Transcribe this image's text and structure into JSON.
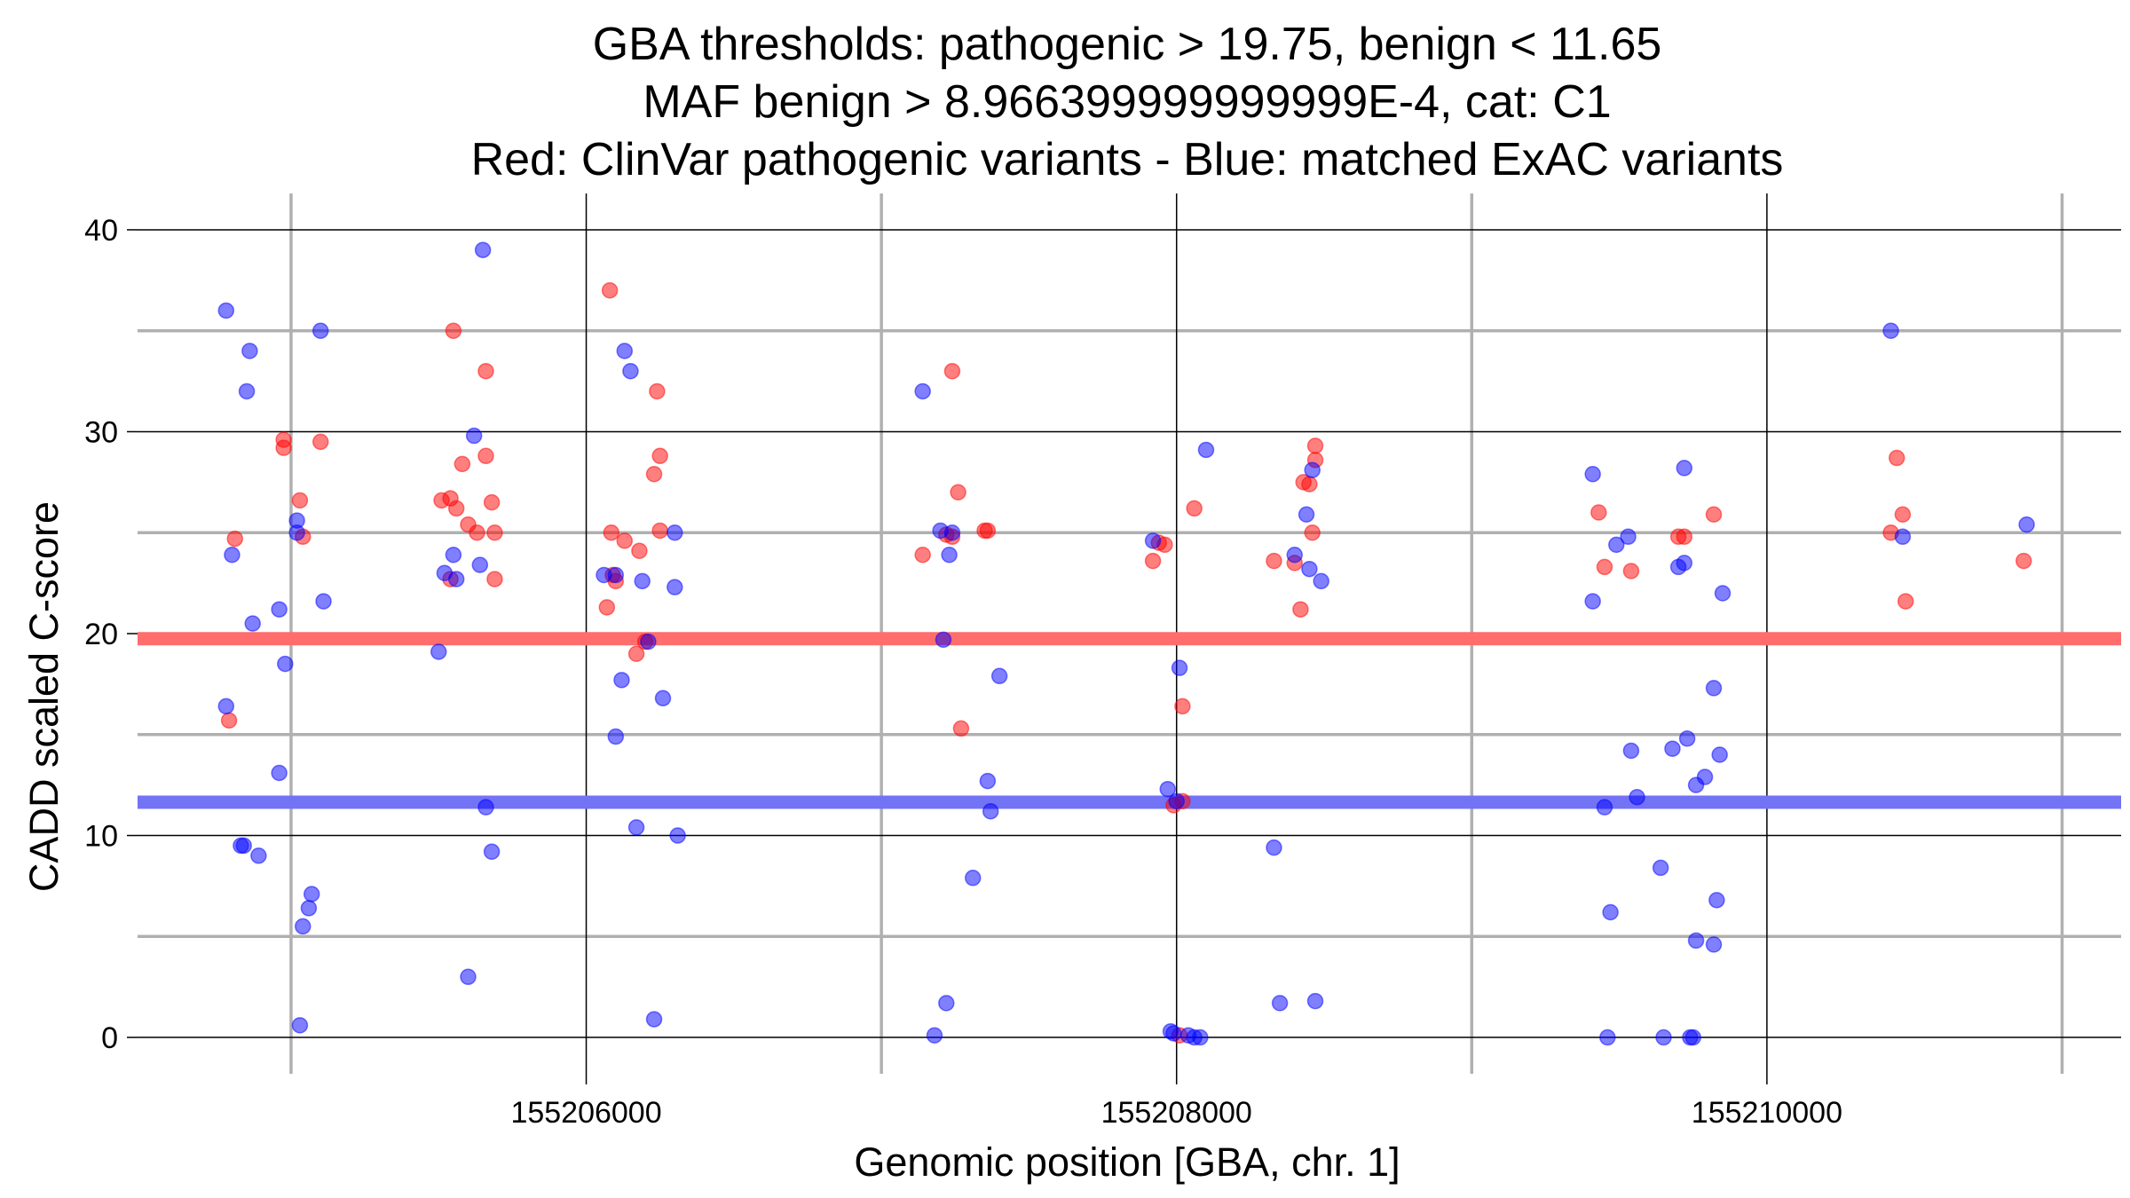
{
  "chart_data": {
    "type": "scatter",
    "title_lines": [
      "GBA thresholds: pathogenic > 19.75, benign < 11.65",
      "MAF benign > 8.966399999999999E-4, cat: C1",
      "Red: ClinVar pathogenic variants - Blue: matched ExAC variants"
    ],
    "xlabel": "Genomic position [GBA, chr. 1]",
    "ylabel": "CADD scaled C-score",
    "xlim": [
      155204480,
      155211200
    ],
    "ylim": [
      -1.8,
      41.8
    ],
    "x_major_ticks": [
      155206000,
      155208000,
      155210000
    ],
    "x_minor_ticks": [
      155205000,
      155207000,
      155209000,
      155211000
    ],
    "y_major_ticks": [
      0,
      10,
      20,
      30,
      40
    ],
    "y_minor_ticks": [
      5,
      15,
      25,
      35
    ],
    "x_tick_labels": [
      "155206000",
      "155208000",
      "155210000"
    ],
    "y_tick_labels": [
      "0",
      "10",
      "20",
      "30",
      "40"
    ],
    "thresholds": [
      {
        "name": "pathogenic",
        "value": 19.75,
        "color": "#ff6d6d"
      },
      {
        "name": "benign",
        "value": 11.65,
        "color": "#7373f5"
      }
    ],
    "colors": {
      "pathogenic": "#ff0000",
      "benign": "#0000ff"
    },
    "series": [
      {
        "name": "ClinVar pathogenic variants",
        "color": "#ff0000",
        "points": [
          [
            155204790,
            15.7
          ],
          [
            155204810,
            24.7
          ],
          [
            155204975,
            29.6
          ],
          [
            155204975,
            29.2
          ],
          [
            155205030,
            26.6
          ],
          [
            155205040,
            24.8
          ],
          [
            155205100,
            29.5
          ],
          [
            155205510,
            26.6
          ],
          [
            155205540,
            26.7
          ],
          [
            155205560,
            26.2
          ],
          [
            155205580,
            28.4
          ],
          [
            155205600,
            25.4
          ],
          [
            155205630,
            25.0
          ],
          [
            155205660,
            28.8
          ],
          [
            155205680,
            26.5
          ],
          [
            155205690,
            25.0
          ],
          [
            155205690,
            22.7
          ],
          [
            155205550,
            35.0
          ],
          [
            155205660,
            33.0
          ],
          [
            155205540,
            22.7
          ],
          [
            155206070,
            21.3
          ],
          [
            155206080,
            37.0
          ],
          [
            155206085,
            25.0
          ],
          [
            155206090,
            22.9
          ],
          [
            155206100,
            22.6
          ],
          [
            155206130,
            24.6
          ],
          [
            155206170,
            19.0
          ],
          [
            155206180,
            24.1
          ],
          [
            155206200,
            19.6
          ],
          [
            155206230,
            27.9
          ],
          [
            155206240,
            32.0
          ],
          [
            155206250,
            28.8
          ],
          [
            155206250,
            25.1
          ],
          [
            155207140,
            23.9
          ],
          [
            155207220,
            24.9
          ],
          [
            155207240,
            24.8
          ],
          [
            155207240,
            33.0
          ],
          [
            155207260,
            27.0
          ],
          [
            155207270,
            15.3
          ],
          [
            155207350,
            25.1
          ],
          [
            155207360,
            25.1
          ],
          [
            155207920,
            23.6
          ],
          [
            155207940,
            24.5
          ],
          [
            155207960,
            24.4
          ],
          [
            155207990,
            11.5
          ],
          [
            155208010,
            0.1
          ],
          [
            155208020,
            11.7
          ],
          [
            155208020,
            16.4
          ],
          [
            155208060,
            26.2
          ],
          [
            155208330,
            23.6
          ],
          [
            155208400,
            23.5
          ],
          [
            155208420,
            21.2
          ],
          [
            155208430,
            27.5
          ],
          [
            155208450,
            27.4
          ],
          [
            155208460,
            25.0
          ],
          [
            155208470,
            28.6
          ],
          [
            155208470,
            29.3
          ],
          [
            155209430,
            26.0
          ],
          [
            155209450,
            23.3
          ],
          [
            155209540,
            23.1
          ],
          [
            155209700,
            24.8
          ],
          [
            155209720,
            24.8
          ],
          [
            155209820,
            25.9
          ],
          [
            155210420,
            25.0
          ],
          [
            155210440,
            28.7
          ],
          [
            155210460,
            25.9
          ],
          [
            155210470,
            21.6
          ],
          [
            155210870,
            23.6
          ]
        ]
      },
      {
        "name": "matched ExAC variants",
        "color": "#0000ff",
        "points": [
          [
            155204780,
            36.0
          ],
          [
            155204780,
            16.4
          ],
          [
            155204800,
            23.9
          ],
          [
            155204830,
            9.5
          ],
          [
            155204840,
            9.5
          ],
          [
            155204850,
            32.0
          ],
          [
            155204860,
            34.0
          ],
          [
            155204870,
            20.5
          ],
          [
            155204890,
            9.0
          ],
          [
            155204960,
            21.2
          ],
          [
            155204960,
            13.1
          ],
          [
            155204980,
            18.5
          ],
          [
            155205020,
            25.6
          ],
          [
            155205020,
            25.0
          ],
          [
            155205030,
            0.6
          ],
          [
            155205040,
            5.5
          ],
          [
            155205060,
            6.4
          ],
          [
            155205070,
            7.1
          ],
          [
            155205100,
            35.0
          ],
          [
            155205110,
            21.6
          ],
          [
            155205500,
            19.1
          ],
          [
            155205520,
            23.0
          ],
          [
            155205550,
            23.9
          ],
          [
            155205560,
            22.7
          ],
          [
            155205600,
            3.0
          ],
          [
            155205620,
            29.8
          ],
          [
            155205640,
            23.4
          ],
          [
            155205650,
            39.0
          ],
          [
            155205660,
            11.4
          ],
          [
            155205680,
            9.2
          ],
          [
            155206060,
            22.9
          ],
          [
            155206100,
            22.9
          ],
          [
            155206100,
            14.9
          ],
          [
            155206120,
            17.7
          ],
          [
            155206130,
            34.0
          ],
          [
            155206150,
            33.0
          ],
          [
            155206170,
            10.4
          ],
          [
            155206190,
            22.6
          ],
          [
            155206210,
            19.6
          ],
          [
            155206230,
            0.9
          ],
          [
            155206260,
            16.8
          ],
          [
            155206300,
            25.0
          ],
          [
            155206300,
            22.3
          ],
          [
            155206310,
            10.0
          ],
          [
            155207140,
            32.0
          ],
          [
            155207180,
            0.1
          ],
          [
            155207200,
            25.1
          ],
          [
            155207210,
            19.7
          ],
          [
            155207220,
            1.7
          ],
          [
            155207230,
            23.9
          ],
          [
            155207240,
            25.0
          ],
          [
            155207310,
            7.9
          ],
          [
            155207360,
            12.7
          ],
          [
            155207370,
            11.2
          ],
          [
            155207400,
            17.9
          ],
          [
            155207920,
            24.6
          ],
          [
            155207970,
            12.3
          ],
          [
            155207980,
            0.3
          ],
          [
            155207990,
            0.2
          ],
          [
            155208000,
            11.7
          ],
          [
            155208010,
            18.3
          ],
          [
            155208040,
            0.1
          ],
          [
            155208060,
            0.0
          ],
          [
            155208080,
            0.0
          ],
          [
            155208100,
            29.1
          ],
          [
            155208330,
            9.4
          ],
          [
            155208350,
            1.7
          ],
          [
            155208400,
            23.9
          ],
          [
            155208440,
            25.9
          ],
          [
            155208450,
            23.2
          ],
          [
            155208460,
            28.1
          ],
          [
            155208470,
            1.8
          ],
          [
            155208490,
            22.6
          ],
          [
            155209410,
            21.6
          ],
          [
            155209410,
            27.9
          ],
          [
            155209450,
            11.4
          ],
          [
            155209460,
            0.0
          ],
          [
            155209470,
            6.2
          ],
          [
            155209490,
            24.4
          ],
          [
            155209530,
            24.8
          ],
          [
            155209540,
            14.2
          ],
          [
            155209560,
            11.9
          ],
          [
            155209640,
            8.4
          ],
          [
            155209650,
            0.0
          ],
          [
            155209680,
            14.3
          ],
          [
            155209700,
            23.3
          ],
          [
            155209720,
            28.2
          ],
          [
            155209720,
            23.5
          ],
          [
            155209730,
            14.8
          ],
          [
            155209740,
            0.0
          ],
          [
            155209750,
            0.0
          ],
          [
            155209760,
            12.5
          ],
          [
            155209760,
            4.8
          ],
          [
            155209790,
            12.9
          ],
          [
            155209820,
            4.6
          ],
          [
            155209820,
            17.3
          ],
          [
            155209830,
            6.8
          ],
          [
            155209840,
            14.0
          ],
          [
            155209850,
            22.0
          ],
          [
            155210420,
            35.0
          ],
          [
            155210460,
            24.8
          ],
          [
            155210880,
            25.4
          ]
        ]
      }
    ]
  }
}
